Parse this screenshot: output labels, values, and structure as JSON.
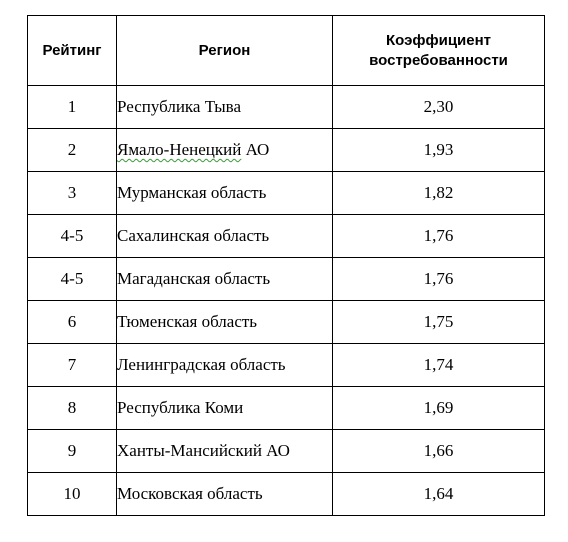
{
  "table": {
    "headers": {
      "rank": "Рейтинг",
      "region": "Регион",
      "coefficient_line1": "Коэффициент",
      "coefficient_line2": "востребованности"
    },
    "rows": [
      {
        "rank": "1",
        "region": "Республика Тыва",
        "coefficient": "2,30"
      },
      {
        "rank": "2",
        "region_part1": "Ямало-Ненецкий",
        "region_part2": " АО",
        "coefficient": "1,93"
      },
      {
        "rank": "3",
        "region": "Мурманская область",
        "coefficient": "1,82"
      },
      {
        "rank": "4-5",
        "region": "Сахалинская область",
        "coefficient": "1,76"
      },
      {
        "rank": "4-5",
        "region": "Магаданская область",
        "coefficient": "1,76"
      },
      {
        "rank": "6",
        "region": "Тюменская область",
        "coefficient": "1,75"
      },
      {
        "rank": "7",
        "region": "Ленинградская область",
        "coefficient": "1,74"
      },
      {
        "rank": "8",
        "region": "Республика Коми",
        "coefficient": "1,69"
      },
      {
        "rank": "9",
        "region": "Ханты-Мансийский АО",
        "coefficient": "1,66"
      },
      {
        "rank": "10",
        "region": "Московская область",
        "coefficient": "1,64"
      }
    ],
    "colors": {
      "border": "#000000",
      "text": "#000000",
      "spellcheck_underline": "#3a9a3a"
    }
  }
}
